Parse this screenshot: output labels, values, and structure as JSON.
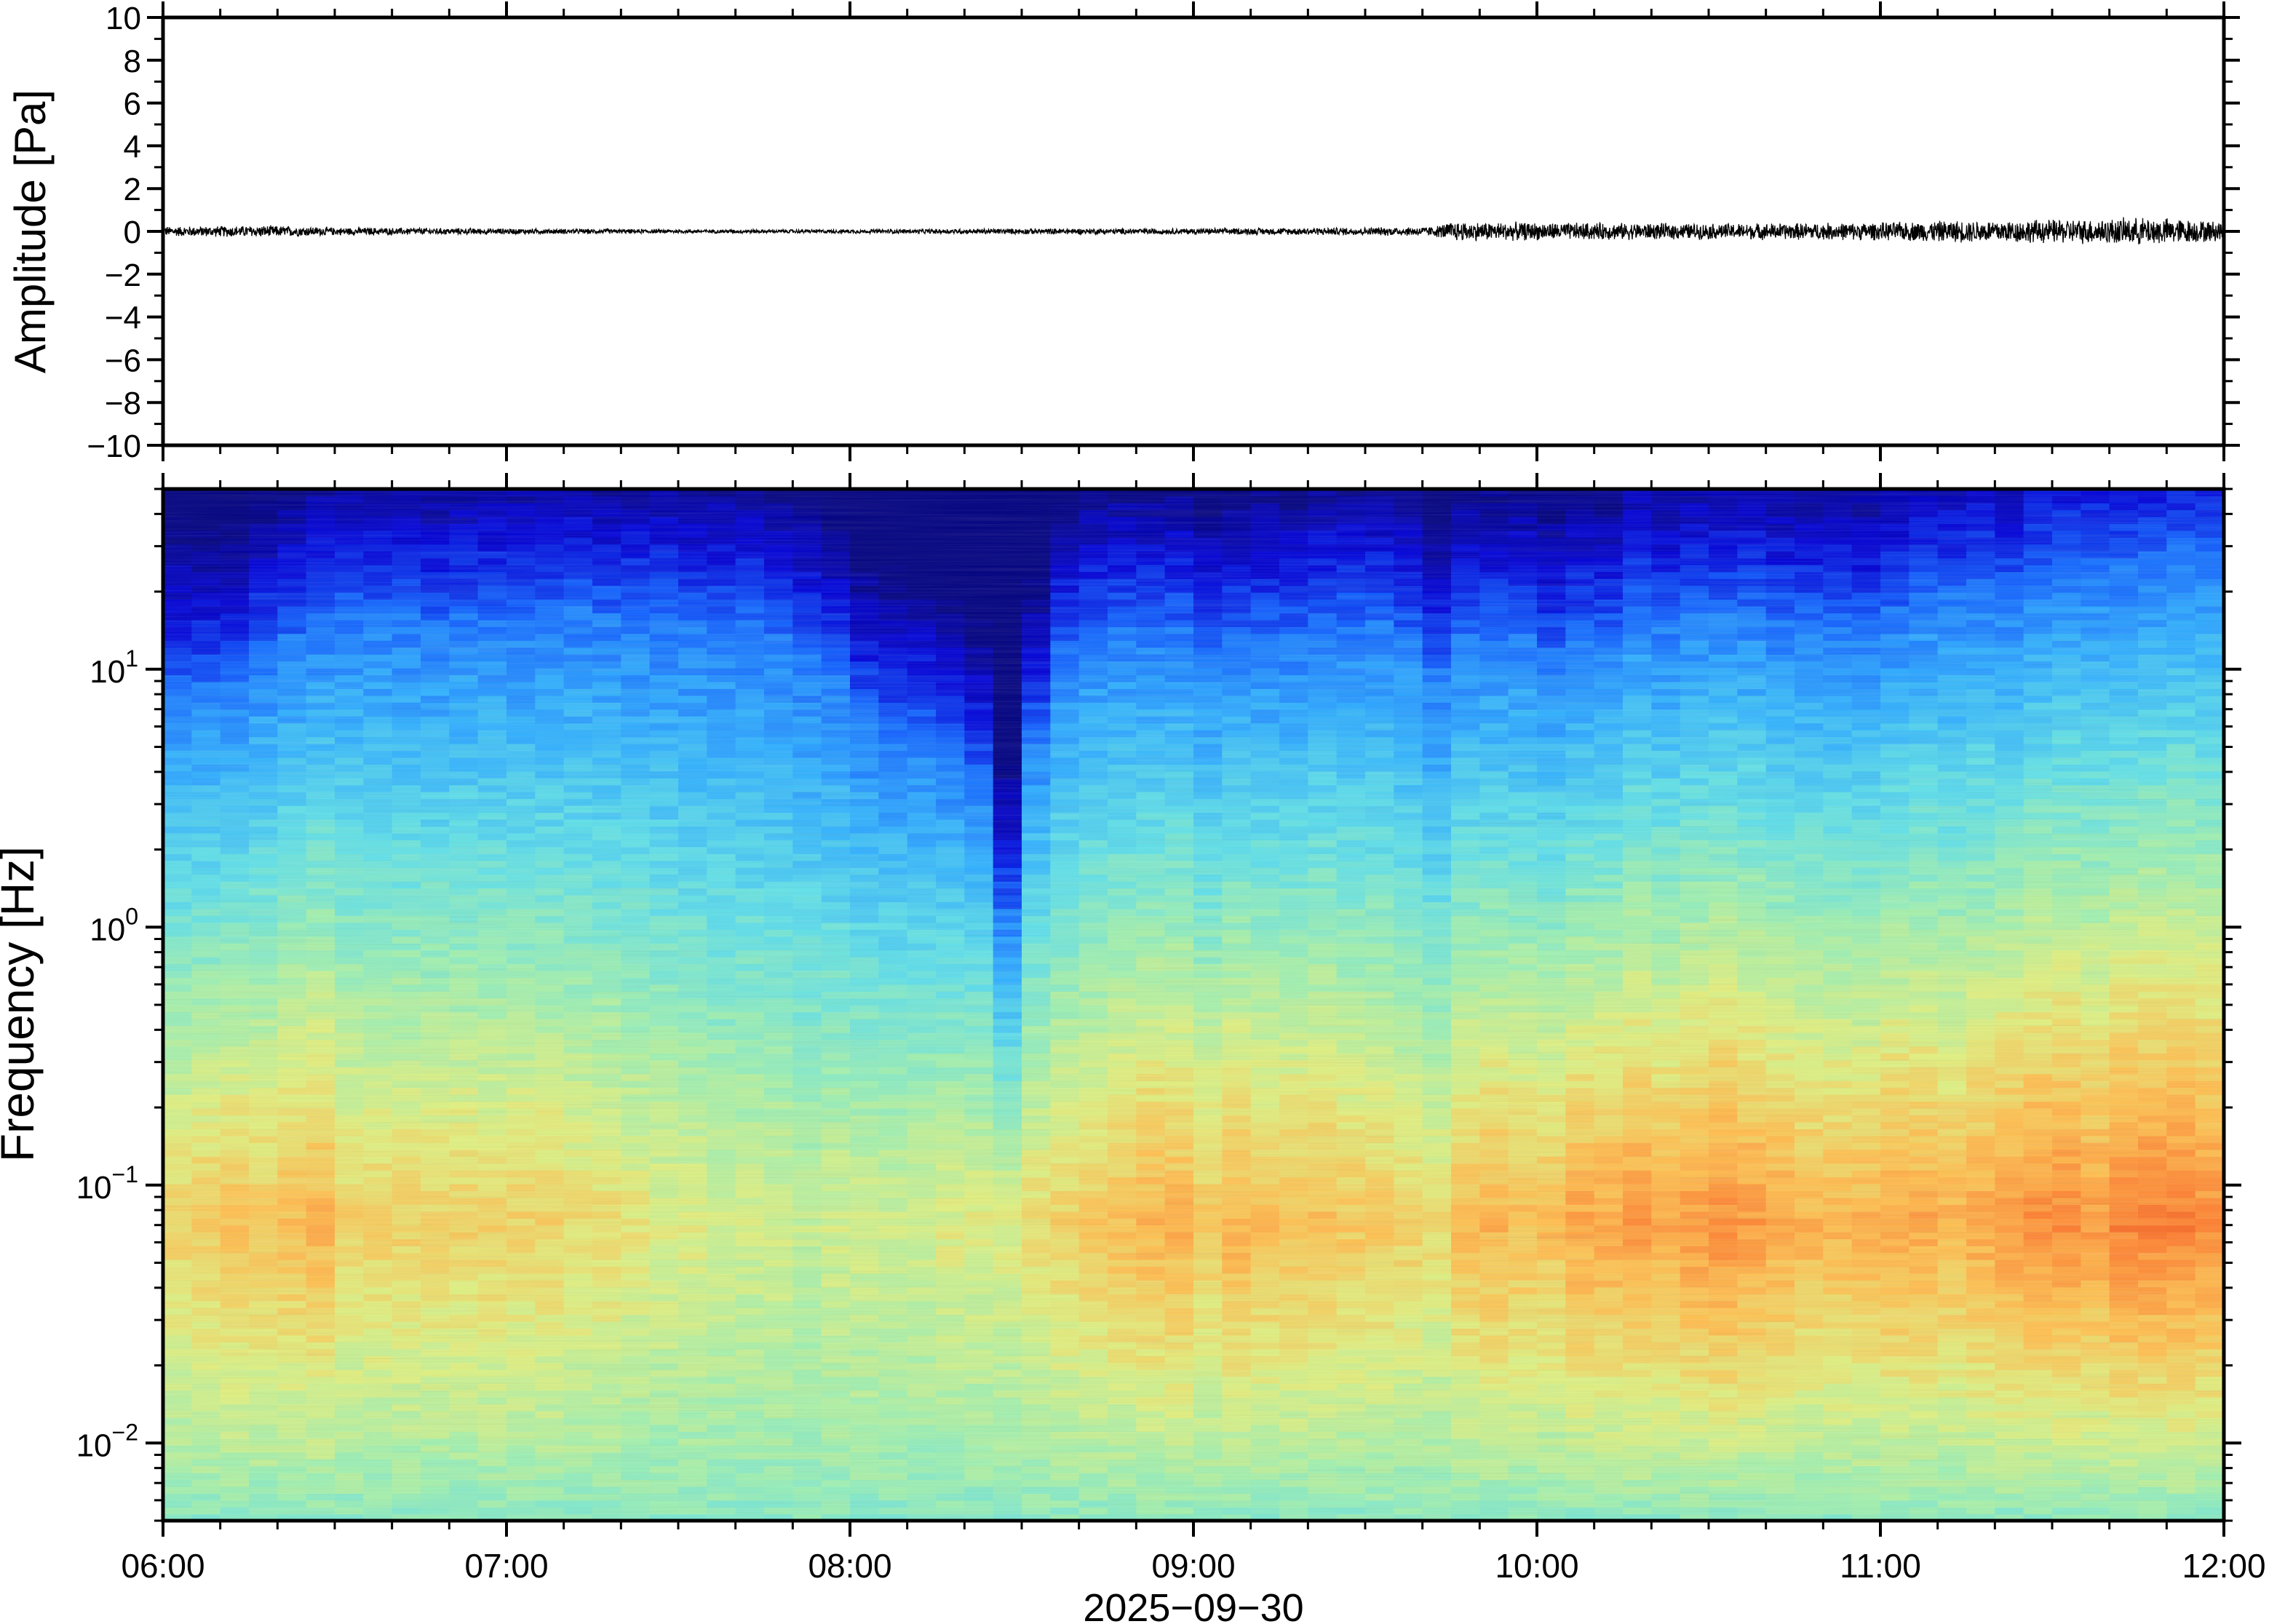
{
  "chart_data": [
    {
      "type": "line",
      "ylabel": "Amplitude [Pa]",
      "ylim": [
        -10,
        10
      ],
      "y_ticks": [
        "10",
        "8",
        "6",
        "4",
        "2",
        "0",
        "−2",
        "−4",
        "−6",
        "−8",
        "−10"
      ],
      "y_tick_values": [
        10,
        8,
        6,
        4,
        2,
        0,
        -2,
        -4,
        -6,
        -8,
        -10
      ],
      "x_range": [
        "06:00",
        "12:00"
      ],
      "series": [
        {
          "envelope_hours": [
            6.0,
            6.3,
            6.5,
            7.0,
            7.5,
            8.0,
            8.5,
            9.0,
            9.5,
            9.7,
            9.75,
            10.0,
            10.5,
            11.0,
            11.2,
            11.5,
            11.8,
            12.0
          ],
          "envelope_pa": [
            0.25,
            0.3,
            0.2,
            0.15,
            0.1,
            0.1,
            0.15,
            0.15,
            0.2,
            0.25,
            0.5,
            0.45,
            0.4,
            0.45,
            0.55,
            0.6,
            0.7,
            0.5
          ],
          "color": "#000000"
        }
      ]
    },
    {
      "type": "heatmap",
      "ylabel": "Frequency [Hz]",
      "xlabel": "2025−09−30",
      "y_scale": "log",
      "ylim": [
        0.005,
        50
      ],
      "y_ticks": [
        {
          "value": 10,
          "base": "10",
          "exp": "1"
        },
        {
          "value": 1,
          "base": "10",
          "exp": "0"
        },
        {
          "value": 0.1,
          "base": "10",
          "exp": "−1"
        },
        {
          "value": 0.01,
          "base": "10",
          "exp": "−2"
        }
      ],
      "x_ticks": [
        "06:00",
        "07:00",
        "08:00",
        "09:00",
        "10:00",
        "11:00",
        "12:00"
      ],
      "x_tick_hours": [
        6,
        7,
        8,
        9,
        10,
        11,
        12
      ],
      "colormap": [
        "#000080",
        "#0000d8",
        "#1060ff",
        "#30b0ff",
        "#60e0e8",
        "#a0f0b0",
        "#e0f080",
        "#ffc050",
        "#ff8030",
        "#e02000",
        "#800000"
      ],
      "time_bins": 72,
      "columns_noise_edge_hz": [
        9,
        9,
        9,
        12,
        14,
        16,
        17,
        17,
        17,
        16,
        17,
        17,
        17,
        17,
        18,
        17,
        17,
        17,
        16,
        16,
        16,
        14,
        12,
        10,
        7,
        6,
        6,
        5,
        4,
        1.2,
        6,
        12,
        14,
        15,
        15,
        15,
        12,
        14,
        14,
        14,
        16,
        16,
        16,
        14,
        10,
        14,
        14,
        14,
        12,
        14,
        14,
        18,
        16,
        18,
        18,
        18,
        16,
        16,
        16,
        15,
        18,
        20,
        20,
        22,
        20,
        24,
        26,
        26,
        26,
        28,
        30,
        30
      ],
      "columns_peak_level": [
        0.66,
        0.68,
        0.7,
        0.68,
        0.7,
        0.72,
        0.66,
        0.66,
        0.66,
        0.66,
        0.66,
        0.66,
        0.66,
        0.66,
        0.64,
        0.64,
        0.62,
        0.6,
        0.6,
        0.58,
        0.58,
        0.58,
        0.56,
        0.58,
        0.58,
        0.58,
        0.58,
        0.6,
        0.6,
        0.6,
        0.64,
        0.66,
        0.68,
        0.7,
        0.72,
        0.72,
        0.68,
        0.72,
        0.7,
        0.7,
        0.7,
        0.68,
        0.68,
        0.66,
        0.64,
        0.7,
        0.72,
        0.7,
        0.7,
        0.74,
        0.74,
        0.76,
        0.74,
        0.76,
        0.78,
        0.76,
        0.74,
        0.72,
        0.72,
        0.72,
        0.74,
        0.74,
        0.72,
        0.74,
        0.76,
        0.78,
        0.78,
        0.76,
        0.8,
        0.8,
        0.8,
        0.78
      ]
    }
  ]
}
